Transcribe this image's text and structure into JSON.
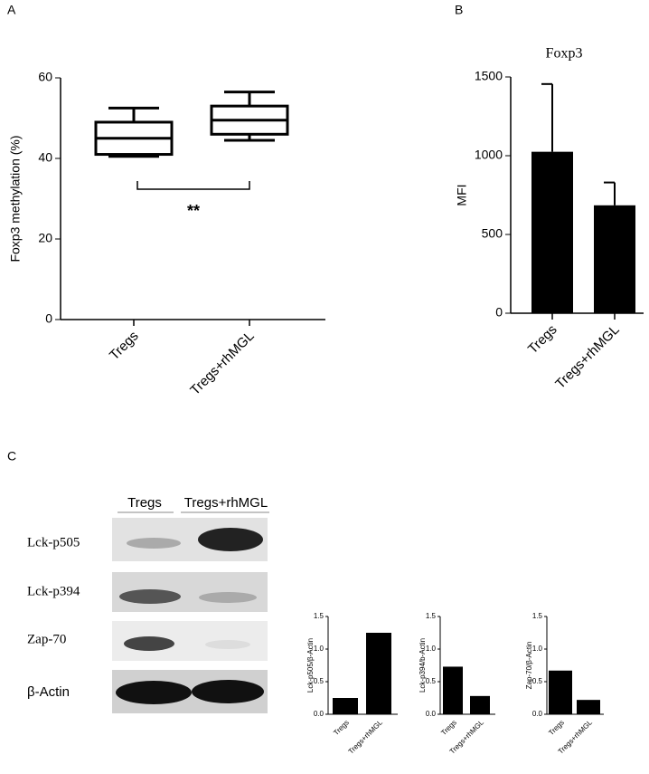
{
  "panel_labels": [
    "A",
    "B",
    "C"
  ],
  "blot": {
    "columns": [
      "Tregs",
      "Tregs+rhMGL"
    ],
    "rows": [
      "Lck-p505",
      "Lck-p394",
      "Zap-70",
      "β-Actin"
    ]
  },
  "chart_data": [
    {
      "type": "box",
      "ylabel": "Foxp3 methylation (%)",
      "categories": [
        "Tregs",
        "Tregs+rhMGL"
      ],
      "min": [
        40.5,
        44.5
      ],
      "q1": [
        41,
        46
      ],
      "median": [
        45,
        49.5
      ],
      "q3": [
        49,
        53
      ],
      "max": [
        52.5,
        56.5
      ],
      "color": "#000000",
      "ylim": [
        0,
        60
      ],
      "yticks": [
        0,
        20,
        40,
        60
      ],
      "annotation": "**"
    },
    {
      "type": "bar",
      "title": "Foxp3",
      "ylabel": "MFI",
      "categories": [
        "Tregs",
        "Tregs+rhMGL"
      ],
      "values": [
        1025,
        685
      ],
      "errors": [
        430,
        145
      ],
      "color": "#000000",
      "ylim": [
        0,
        1500
      ],
      "yticks": [
        0,
        500,
        1000,
        1500
      ]
    },
    {
      "type": "bar",
      "ylabel": "Lck-p505/β-Actin",
      "categories": [
        "Tregs",
        "Tregs+rhMGL"
      ],
      "values": [
        0.25,
        1.25
      ],
      "color": "#000000",
      "ylim": [
        0,
        1.5
      ],
      "yticks": [
        {
          "value": 0,
          "label": "0.0"
        },
        {
          "value": 0.5,
          "label": "0.5"
        },
        {
          "value": 1,
          "label": "1.0"
        },
        {
          "value": 1.5,
          "label": "1.5"
        }
      ]
    },
    {
      "type": "bar",
      "ylabel": "Lck-p394/b-Actin",
      "categories": [
        "Tregs",
        "Tregs+rhMGL"
      ],
      "values": [
        0.73,
        0.28
      ],
      "color": "#000000",
      "ylim": [
        0,
        1.5
      ],
      "yticks": [
        {
          "value": 0,
          "label": "0.0"
        },
        {
          "value": 0.5,
          "label": "0.5"
        },
        {
          "value": 1,
          "label": "1.0"
        },
        {
          "value": 1.5,
          "label": "1.5"
        }
      ]
    },
    {
      "type": "bar",
      "ylabel": "Zap-70/β-Actin",
      "categories": [
        "Tregs",
        "Tregs+rhMGL"
      ],
      "values": [
        0.67,
        0.22
      ],
      "color": "#000000",
      "ylim": [
        0,
        1.5
      ],
      "yticks": [
        {
          "value": 0,
          "label": "0.0"
        },
        {
          "value": 0.5,
          "label": "0.5"
        },
        {
          "value": 1,
          "label": "1.0"
        },
        {
          "value": 1.5,
          "label": "1.5"
        }
      ]
    }
  ]
}
